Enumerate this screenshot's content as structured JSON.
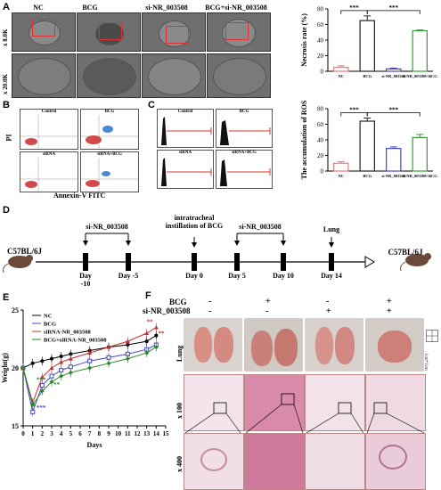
{
  "panels": {
    "A": "A",
    "B": "B",
    "C": "C",
    "D": "D",
    "E": "E",
    "F": "F"
  },
  "panelA": {
    "columns": [
      "NC",
      "BCG",
      "si-NR_003508",
      "BCG+si-NR_003508"
    ],
    "magnifications": [
      "x 8.0K",
      "x 20.0K"
    ]
  },
  "panelB": {
    "subpanels": [
      "Control",
      "BCG",
      "siRNA",
      "siRNA+BCG"
    ],
    "ylabel": "PI",
    "xlabel": "Annexin-V FITC"
  },
  "panelC": {
    "subpanels": [
      "Control",
      "BCG",
      "siRNA",
      "siRNA+BCG"
    ]
  },
  "panelD": {
    "mouse_start": "C57BL/6J",
    "mouse_end": "C57BL/6J",
    "treatment1": "si-NR_003508",
    "treatment2": "intratracheal instillation of BCG",
    "treatment3": "si-NR_003508",
    "endpoint": "Lung",
    "days": [
      "Day -10",
      "Day -5",
      "Day 0",
      "Day 5",
      "Day 10",
      "Day 14"
    ]
  },
  "panelF": {
    "row_bcg": "BCG",
    "row_si": "si-NR_003508",
    "signs_bcg": [
      "-",
      "+",
      "-",
      "+"
    ],
    "signs_si": [
      "-",
      "-",
      "+",
      "+"
    ],
    "rows": [
      "Lung",
      "x 100",
      "x 400"
    ],
    "scale_label": "1cm*1cm"
  },
  "chart_data": [
    {
      "type": "bar",
      "panel": "A",
      "ylabel": "Necrosis rate (%)",
      "categories": [
        "NC",
        "BCG",
        "si-NR_003508",
        "si-NR_003508+BCG"
      ],
      "values": [
        5,
        65,
        3,
        52
      ],
      "errors": [
        2,
        6,
        1,
        1
      ],
      "ylim": [
        0,
        80
      ],
      "yticks": [
        "0",
        "20",
        "40",
        "60",
        "80"
      ],
      "colors": [
        "#e87a7a",
        "#222222",
        "#4646c8",
        "#3a9a3a"
      ],
      "significance": [
        "***",
        "***"
      ]
    },
    {
      "type": "bar",
      "panel": "C",
      "ylabel": "The accumulation of ROS",
      "categories": [
        "NC",
        "BCG",
        "si-NR_003508",
        "si-NR_003508+BCG"
      ],
      "values": [
        10,
        64,
        29,
        43
      ],
      "errors": [
        2,
        4,
        2,
        4
      ],
      "ylim": [
        0,
        80
      ],
      "yticks": [
        "0",
        "20",
        "40",
        "60",
        "80"
      ],
      "colors": [
        "#e87a7a",
        "#222222",
        "#4646c8",
        "#3a9a3a"
      ],
      "significance": [
        "***",
        "***"
      ]
    },
    {
      "type": "line",
      "panel": "E",
      "ylabel": "Weight(g)",
      "xlabel": "Days",
      "xlim": [
        0,
        15
      ],
      "ylim": [
        15,
        25
      ],
      "xticks": [
        "0",
        "1",
        "2",
        "3",
        "4",
        "5",
        "6",
        "7",
        "8",
        "9",
        "10",
        "11",
        "12",
        "13",
        "14",
        "15"
      ],
      "yticks": [
        "15",
        "20",
        "25"
      ],
      "x": [
        0,
        1,
        2,
        3,
        4,
        5,
        7,
        9,
        11,
        13,
        14
      ],
      "series": [
        {
          "name": "NC",
          "color": "#000000",
          "marker": "circle",
          "values": [
            20.0,
            20.4,
            20.6,
            20.8,
            21.0,
            21.2,
            21.5,
            21.8,
            22.0,
            22.3,
            22.8
          ]
        },
        {
          "name": "BCG",
          "color": "#4646c8",
          "marker": "open-square",
          "values": [
            20.0,
            16.2,
            18.5,
            19.3,
            19.8,
            20.1,
            20.6,
            20.9,
            21.2,
            21.6,
            22.0
          ]
        },
        {
          "name": "siRNA-NR_003508",
          "color": "#c03030",
          "marker": "triangle",
          "values": [
            20.0,
            17.0,
            19.2,
            20.0,
            20.5,
            20.8,
            21.3,
            21.8,
            22.3,
            23.0,
            23.5
          ]
        },
        {
          "name": "BCG+siRNA-NR_003508",
          "color": "#2a8a2a",
          "marker": "diamond",
          "values": [
            20.0,
            16.8,
            18.0,
            18.8,
            19.3,
            19.6,
            20.0,
            20.4,
            20.8,
            21.3,
            21.8
          ]
        }
      ],
      "annotations": [
        "***",
        "***",
        "**",
        "**",
        "**"
      ]
    }
  ]
}
